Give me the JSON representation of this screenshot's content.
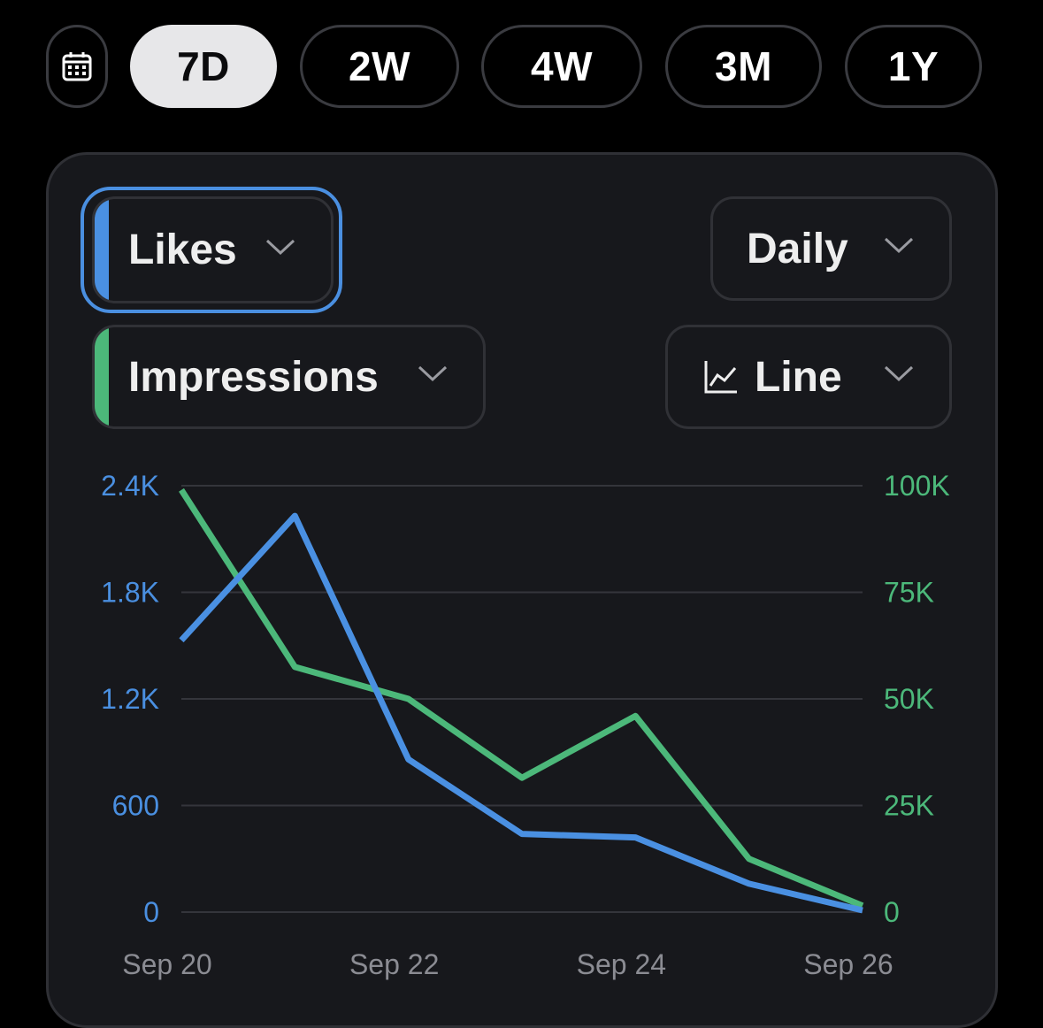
{
  "ranges": {
    "items": [
      "7D",
      "2W",
      "4W",
      "3M",
      "1Y"
    ],
    "selected": "7D"
  },
  "controls": {
    "metric1": "Likes",
    "metric2": "Impressions",
    "interval": "Daily",
    "chart_type": "Line"
  },
  "colors": {
    "likes": "#4a90e2",
    "impressions": "#4cb87a",
    "active_pill": "#e7e7e9"
  },
  "chart_data": {
    "type": "line",
    "x": [
      "Sep 20",
      "Sep 21",
      "Sep 22",
      "Sep 23",
      "Sep 24",
      "Sep 25",
      "Sep 26"
    ],
    "x_tick_labels": [
      "Sep 20",
      "Sep 22",
      "Sep 24",
      "Sep 26"
    ],
    "series": [
      {
        "name": "Likes",
        "axis": "left",
        "values": [
          1530,
          2230,
          860,
          440,
          420,
          160,
          10
        ]
      },
      {
        "name": "Impressions",
        "axis": "right",
        "values": [
          99000,
          57500,
          50000,
          31500,
          46000,
          12500,
          1500
        ]
      }
    ],
    "y_left": {
      "ticks": [
        "0",
        "600",
        "1.2K",
        "1.8K",
        "2.4K"
      ],
      "lim": [
        0,
        2400
      ]
    },
    "y_right": {
      "ticks": [
        "0",
        "25K",
        "50K",
        "75K",
        "100K"
      ],
      "lim": [
        0,
        100000
      ]
    },
    "grid": true
  }
}
